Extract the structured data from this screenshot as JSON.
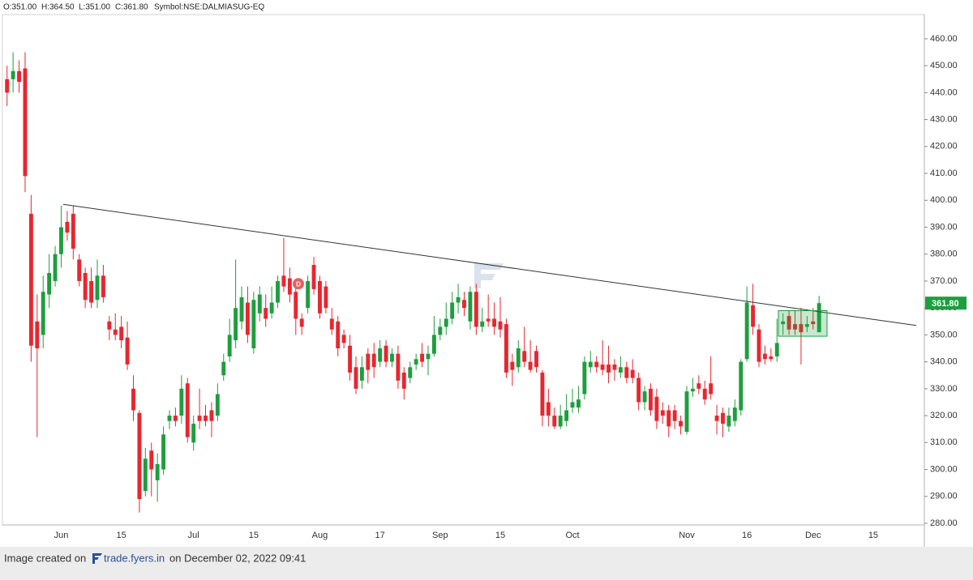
{
  "chart_data": {
    "type": "candlestick",
    "ohlc_labels": [
      "O:351.00",
      "H:364.50",
      "L:351.00",
      "C:361.80"
    ],
    "symbol": "Symbol:NSE:DALMIASUG-EQ",
    "footer": {
      "prefix": "Image created on",
      "site": "trade.fyers.in",
      "suffix": "on December 02, 2022 09:41"
    },
    "up_color": "#1e9e3e",
    "down_color": "#e8262f",
    "ylim": [
      279.4,
      469
    ],
    "yticks": [
      {
        "value": 280,
        "label": "280.00"
      },
      {
        "value": 290,
        "label": "290.00"
      },
      {
        "value": 300,
        "label": "300.00"
      },
      {
        "value": 310,
        "label": "310.00"
      },
      {
        "value": 320,
        "label": "320.00"
      },
      {
        "value": 330,
        "label": "330.00"
      },
      {
        "value": 340,
        "label": "340.00"
      },
      {
        "value": 350,
        "label": "350.00"
      },
      {
        "value": 360,
        "label": "360.00"
      },
      {
        "value": 370,
        "label": "370.00"
      },
      {
        "value": 380,
        "label": "380.00"
      },
      {
        "value": 390,
        "label": "390.00"
      },
      {
        "value": 400,
        "label": "400.00"
      },
      {
        "value": 410,
        "label": "410.00"
      },
      {
        "value": 420,
        "label": "420.00"
      },
      {
        "value": 430,
        "label": "430.00"
      },
      {
        "value": 440,
        "label": "440.00"
      },
      {
        "value": 450,
        "label": "450.00"
      },
      {
        "value": 460,
        "label": "460.00"
      }
    ],
    "last_price": {
      "value": 361.8,
      "label": "361.80"
    },
    "trendline": {
      "start": 398.5,
      "end": 353.5
    },
    "box": {
      "top": 359,
      "bottom": 349.5
    },
    "marker": {
      "label": "D",
      "value": 369
    },
    "categories": [
      null,
      null,
      null,
      null,
      null,
      null,
      null,
      null,
      null,
      "Jun",
      null,
      null,
      null,
      null,
      null,
      null,
      null,
      null,
      null,
      "15",
      null,
      null,
      null,
      null,
      null,
      null,
      null,
      null,
      null,
      null,
      null,
      "Jul",
      null,
      null,
      null,
      null,
      null,
      null,
      null,
      null,
      null,
      "15",
      null,
      null,
      null,
      null,
      null,
      null,
      null,
      null,
      null,
      null,
      "Aug",
      null,
      null,
      null,
      null,
      null,
      null,
      null,
      null,
      null,
      "17",
      null,
      null,
      null,
      null,
      null,
      null,
      null,
      null,
      null,
      "Sep",
      null,
      null,
      null,
      null,
      null,
      null,
      null,
      null,
      null,
      "15",
      null,
      null,
      null,
      null,
      null,
      null,
      null,
      null,
      null,
      null,
      null,
      "Oct",
      null,
      null,
      null,
      null,
      null,
      null,
      null,
      null,
      null,
      null,
      null,
      null,
      null,
      null,
      null,
      null,
      null,
      null,
      "Nov",
      null,
      null,
      null,
      null,
      null,
      null,
      null,
      null,
      null,
      "16",
      null,
      null,
      null,
      null,
      null,
      null,
      null,
      null,
      null,
      null,
      "Dec",
      null,
      null,
      null,
      null,
      null,
      null,
      null,
      null,
      null,
      "15",
      null,
      null,
      null,
      null,
      null,
      null,
      null,
      null
    ],
    "open": [
      445,
      445,
      448,
      449,
      395,
      355,
      350,
      365,
      370,
      380,
      392,
      395,
      378,
      373,
      370,
      363,
      372,
      355,
      352,
      353,
      349,
      330,
      321,
      292,
      307,
      296,
      300,
      318,
      320,
      320,
      332,
      310,
      320,
      320,
      322,
      320,
      335,
      342,
      348,
      355,
      362,
      345,
      358,
      360,
      358,
      362,
      372,
      371,
      366,
      356,
      360,
      376,
      370,
      368,
      356,
      355,
      350,
      346,
      338,
      333,
      343,
      343,
      340,
      346,
      340,
      343,
      336,
      334,
      339,
      343,
      341,
      343,
      350,
      353,
      356,
      362,
      363,
      355,
      366,
      353,
      356,
      356,
      355,
      354,
      340,
      338,
      344,
      340,
      344,
      336,
      325,
      320,
      316,
      318,
      323,
      323,
      328,
      338,
      340,
      339,
      339,
      339,
      336,
      338,
      337,
      334,
      325,
      330,
      327,
      322,
      322,
      322,
      318,
      314,
      329,
      332,
      330,
      332,
      320,
      321,
      316,
      318,
      322,
      341,
      361,
      352,
      343,
      342,
      342,
      354,
      357,
      354,
      354,
      353,
      355,
      351,
      null,
      null,
      null,
      null,
      null,
      null,
      null,
      null,
      null,
      null,
      null,
      null,
      null,
      null,
      null,
      null,
      null
    ],
    "high": [
      450,
      455,
      452,
      455,
      402,
      365,
      372,
      380,
      383,
      398,
      396,
      398,
      380,
      375,
      375,
      378,
      376,
      357,
      358,
      357,
      355,
      335,
      322,
      308,
      310,
      306,
      316,
      322,
      323,
      335,
      334,
      320,
      330,
      324,
      325,
      332,
      343,
      356,
      378,
      368,
      368,
      366,
      368,
      365,
      368,
      372,
      386,
      375,
      370,
      358,
      372,
      379,
      372,
      370,
      360,
      357,
      352,
      350,
      342,
      342,
      345,
      347,
      348,
      348,
      345,
      346,
      338,
      340,
      343,
      347,
      346,
      357,
      356,
      362,
      366,
      369,
      366,
      368,
      369,
      360,
      365,
      362,
      364,
      356,
      343,
      348,
      353,
      348,
      346,
      337,
      330,
      323,
      324,
      328,
      330,
      331,
      342,
      344,
      342,
      348,
      346,
      341,
      342,
      340,
      341,
      336,
      331,
      332,
      330,
      325,
      324,
      324,
      320,
      331,
      334,
      335,
      333,
      342,
      324,
      323,
      323,
      326,
      341,
      368,
      369,
      354,
      346,
      345,
      356,
      358,
      359,
      359,
      360,
      357,
      360,
      364.5,
      null,
      null,
      null,
      null,
      null,
      null,
      null,
      null,
      null,
      null,
      null,
      null,
      null,
      null,
      null,
      null,
      null
    ],
    "low": [
      435,
      440,
      440,
      403,
      340,
      312,
      345,
      360,
      368,
      375,
      385,
      378,
      368,
      360,
      360,
      360,
      362,
      348,
      348,
      345,
      337,
      318,
      284,
      290,
      290,
      288,
      298,
      315,
      316,
      317,
      310,
      307,
      315,
      316,
      312,
      318,
      333,
      340,
      345,
      352,
      347,
      343,
      355,
      353,
      356,
      360,
      366,
      362,
      350,
      350,
      358,
      365,
      356,
      358,
      350,
      342,
      345,
      333,
      328,
      330,
      332,
      334,
      338,
      338,
      338,
      330,
      326,
      332,
      337,
      338,
      335,
      342,
      348,
      350,
      354,
      358,
      357,
      352,
      350,
      351,
      353,
      350,
      349,
      334,
      331,
      336,
      338,
      336,
      336,
      316,
      316,
      315,
      315,
      316,
      321,
      321,
      326,
      336,
      336,
      335,
      332,
      333,
      334,
      332,
      332,
      322,
      322,
      320,
      315,
      317,
      312,
      315,
      313,
      313,
      327,
      328,
      324,
      326,
      313,
      312,
      314,
      316,
      320,
      340,
      350,
      338,
      339,
      340,
      340,
      350,
      350,
      350,
      339,
      351,
      352,
      351,
      null,
      null,
      null,
      null,
      null,
      null,
      null,
      null,
      null,
      null,
      null,
      null,
      null,
      null,
      null,
      null,
      null
    ],
    "close": [
      440,
      448,
      444,
      409,
      346,
      345,
      366,
      373,
      380,
      390,
      388,
      382,
      370,
      363,
      362,
      372,
      364,
      352,
      350,
      348,
      339,
      322,
      289,
      304,
      300,
      302,
      313,
      320,
      318,
      330,
      312,
      317,
      318,
      318,
      318,
      328,
      340,
      350,
      360,
      364,
      350,
      363,
      365,
      356,
      362,
      370,
      368,
      365,
      356,
      353,
      370,
      367,
      358,
      360,
      352,
      345,
      347,
      336,
      330,
      338,
      337,
      338,
      345,
      340,
      343,
      333,
      330,
      338,
      341,
      340,
      343,
      350,
      353,
      356,
      362,
      364,
      360,
      366,
      353,
      355,
      355,
      353,
      352,
      336,
      337,
      345,
      340,
      337,
      338,
      320,
      320,
      316,
      320,
      322,
      325,
      326,
      340,
      340,
      338,
      337,
      336,
      337,
      338,
      334,
      334,
      325,
      329,
      322,
      318,
      320,
      316,
      318,
      316,
      329,
      330,
      330,
      326,
      328,
      318,
      317,
      320,
      323,
      340,
      362,
      353,
      340,
      341,
      341,
      347,
      355,
      352,
      352,
      351,
      354,
      354,
      361.8,
      null,
      null,
      null,
      null,
      null,
      null,
      null,
      null,
      null,
      null,
      null,
      null,
      null,
      null,
      null,
      null,
      null
    ]
  }
}
